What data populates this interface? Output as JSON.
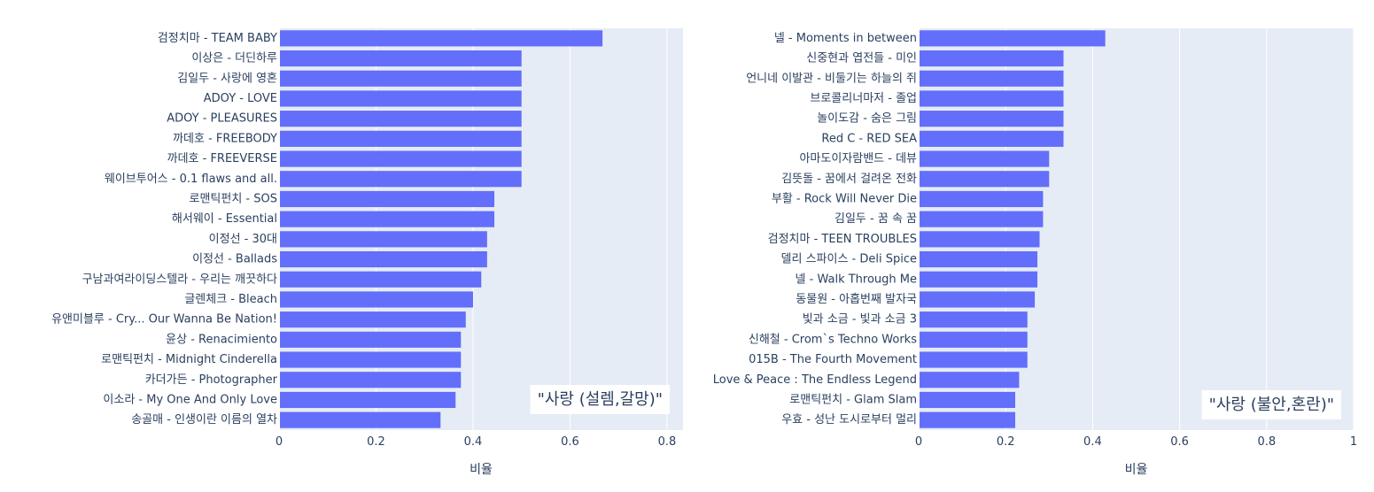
{
  "chart_data": [
    {
      "type": "bar",
      "orientation": "horizontal",
      "annotation": "\"사랑 (설렘,갈망)\"",
      "xlabel": "비율",
      "xlim": [
        0,
        0.833
      ],
      "xticks": [
        0,
        0.2,
        0.4,
        0.6,
        0.8
      ],
      "xtick_labels": [
        "0",
        "0.2",
        "0.4",
        "0.6",
        "0.8"
      ],
      "grid": true,
      "bar_color": "#636efa",
      "categories": [
        "검정치마 - TEAM BABY",
        "이상은 - 더딘하루",
        "김일두 - 사랑에 영혼",
        "ADOY - LOVE",
        "ADOY - PLEASURES",
        "까데호 - FREEBODY",
        "까데호 - FREEVERSE",
        "웨이브투어스 - 0.1 flaws and all.",
        "로맨틱펀치 - SOS",
        "해서웨이 - Essential",
        "이정선 - 30대",
        "이정선 - Ballads",
        "구남과여라이딩스텔라 - 우리는 깨끗하다",
        "글렌체크 - Bleach",
        "유앤미블루 - Cry... Our Wanna Be Nation!",
        "윤상 - Renacimiento",
        "로맨틱펀치 - Midnight Cinderella",
        "카더가든 - Photographer",
        "이소라 - My One And Only Love",
        "송골매 - 인생이란 이름의 열차"
      ],
      "values": [
        0.667,
        0.5,
        0.5,
        0.5,
        0.5,
        0.5,
        0.5,
        0.5,
        0.444,
        0.444,
        0.429,
        0.429,
        0.417,
        0.4,
        0.385,
        0.375,
        0.375,
        0.375,
        0.364,
        0.333
      ]
    },
    {
      "type": "bar",
      "orientation": "horizontal",
      "annotation": "\"사랑 (불안,혼란)\"",
      "xlabel": "비율",
      "xlim": [
        0,
        1
      ],
      "xticks": [
        0,
        0.2,
        0.4,
        0.6,
        0.8,
        1
      ],
      "xtick_labels": [
        "0",
        "0.2",
        "0.4",
        "0.6",
        "0.8",
        "1"
      ],
      "grid": true,
      "bar_color": "#636efa",
      "categories": [
        "넬 - Moments in between",
        "신중현과 엽전들 - 미인",
        "언니네 이발관 - 비둘기는 하늘의 쥐",
        "브로콜리너마저 - 졸업",
        "놀이도감 - 숨은 그림",
        "Red C - RED SEA",
        "아마도이자람밴드 - 데뷰",
        "김뜻돌 - 꿈에서 걸려온 전화",
        "부활 - Rock Will Never Die",
        "김일두 - 꿈 속 꿈",
        "검정치마 - TEEN TROUBLES",
        "델리 스파이스 - Deli Spice",
        "넬 - Walk Through Me",
        "동물원 - 아홉번째 발자국",
        "빛과 소금 - 빛과 소금 3",
        "신해철 - Crom`s Techno Works",
        "015B - The Fourth Movement",
        "Love & Peace : The Endless Legend",
        "로맨틱펀치 - Glam Slam",
        "우효 - 성난 도시로부터 멀리"
      ],
      "values": [
        0.429,
        0.333,
        0.333,
        0.333,
        0.333,
        0.333,
        0.3,
        0.3,
        0.286,
        0.286,
        0.278,
        0.273,
        0.273,
        0.267,
        0.25,
        0.25,
        0.25,
        0.231,
        0.222,
        0.222
      ]
    }
  ]
}
